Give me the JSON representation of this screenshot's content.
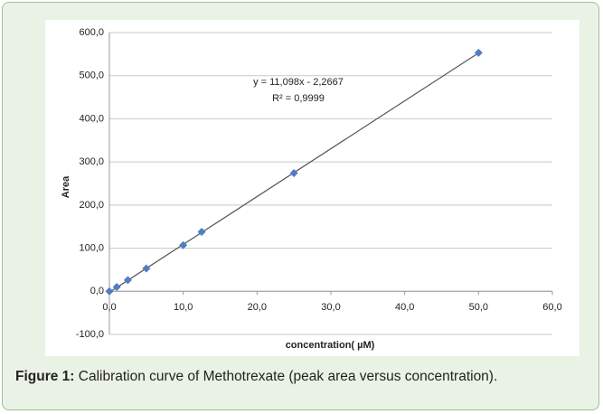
{
  "chart_data": {
    "type": "scatter",
    "x_label": "concentration( µM)",
    "y_label": "Area",
    "x": [
      0,
      1,
      2.5,
      5,
      10,
      12.5,
      25,
      50
    ],
    "series": [
      {
        "color": "#4f7ec4",
        "values": [
          0,
          10,
          26,
          53,
          107,
          138,
          274,
          553
        ]
      }
    ],
    "trendline": {
      "label": "y = 11,098x - 2,2667",
      "r2_label": "R² = 0,9999",
      "slope": 11.098,
      "intercept": -2.2667,
      "color": "#555555"
    },
    "xlim": [
      0,
      60
    ],
    "ylim": [
      -100,
      600
    ],
    "xticks": [
      {
        "value": 0,
        "label": "0,0"
      },
      {
        "value": 10,
        "label": "10,0"
      },
      {
        "value": 20,
        "label": "20,0"
      },
      {
        "value": 30,
        "label": "30,0"
      },
      {
        "value": 40,
        "label": "40,0"
      },
      {
        "value": 50,
        "label": "50,0"
      },
      {
        "value": 60,
        "label": "60,0"
      }
    ],
    "yticks": [
      {
        "value": -100,
        "label": "-100,0"
      },
      {
        "value": 0,
        "label": "0,0"
      },
      {
        "value": 100,
        "label": "100,0"
      },
      {
        "value": 200,
        "label": "200,0"
      },
      {
        "value": 300,
        "label": "300,0"
      },
      {
        "value": 400,
        "label": "400,0"
      },
      {
        "value": 500,
        "label": "500,0"
      },
      {
        "value": 600,
        "label": "600,0"
      }
    ],
    "grid": true
  },
  "caption": {
    "label": "Figure 1:",
    "text": "Calibration curve of Methotrexate (peak area versus concentration)."
  }
}
